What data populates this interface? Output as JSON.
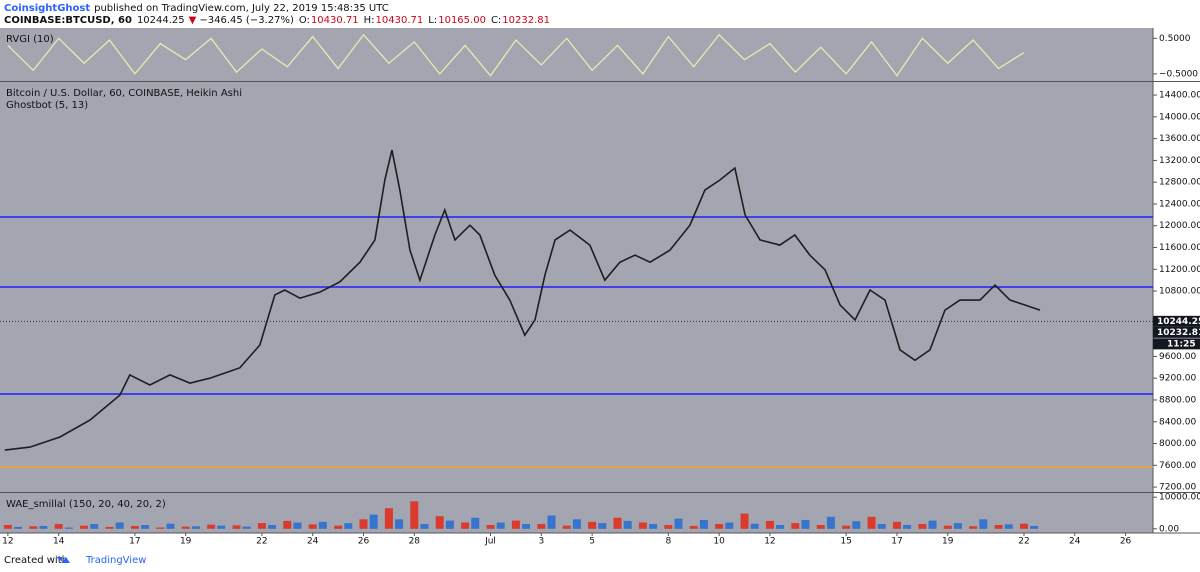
{
  "header": {
    "author": "CoinsightGhost",
    "published": "published on TradingView.com, July 22, 2019 15:48:35 UTC",
    "symbol": "COINBASE:BTCUSD, 60",
    "last": "10244.25",
    "arrow": "▼",
    "change": "−346.45 (−3.27%)",
    "ohlc": [
      {
        "k": "O:",
        "v": "10430.71"
      },
      {
        "k": "H:",
        "v": "10430.71"
      },
      {
        "k": "L:",
        "v": "10165.00"
      },
      {
        "k": "C:",
        "v": "10232.81"
      }
    ]
  },
  "chart_data": [
    {
      "type": "line",
      "title": "RVGI (10)",
      "ylim": [
        -0.7,
        0.79
      ],
      "yticks": [
        {
          "value": 0.5,
          "label": "0.5000"
        },
        {
          "value": -0.5,
          "label": "−0.5000"
        }
      ],
      "x": [
        0,
        1,
        2,
        3,
        4,
        5,
        6,
        7,
        8,
        9,
        10,
        11,
        12,
        13,
        14,
        15,
        16,
        17,
        18,
        19,
        20,
        21,
        22,
        23,
        24,
        25,
        26,
        27,
        28,
        29,
        30,
        31,
        32,
        33,
        34,
        35,
        36,
        37,
        38,
        39,
        40
      ],
      "series": [
        {
          "name": "RVGI",
          "color": "#e4ecae",
          "values": [
            0.3,
            -0.4,
            0.5,
            -0.2,
            0.45,
            -0.5,
            0.35,
            -0.1,
            0.5,
            -0.45,
            0.2,
            -0.3,
            0.55,
            -0.35,
            0.6,
            -0.2,
            0.4,
            -0.5,
            0.3,
            -0.55,
            0.45,
            -0.25,
            0.5,
            -0.4,
            0.3,
            -0.5,
            0.55,
            -0.3,
            0.6,
            -0.1,
            0.35,
            -0.45,
            0.25,
            -0.5,
            0.4,
            -0.55,
            0.5,
            -0.2,
            0.45,
            -0.35,
            0.1
          ]
        }
      ]
    },
    {
      "type": "line",
      "title": "Bitcoin / U.S. Dollar, 60, COINBASE, Heikin Ashi",
      "subtitle": "Ghostbot (5, 13)",
      "xlim": [
        -0.31,
        45.08
      ],
      "ylim": [
        7110,
        14640
      ],
      "xticks": [
        {
          "value": 0,
          "label": "12"
        },
        {
          "value": 2,
          "label": "14"
        },
        {
          "value": 5,
          "label": "17"
        },
        {
          "value": 7,
          "label": "19"
        },
        {
          "value": 10,
          "label": "22"
        },
        {
          "value": 12,
          "label": "24"
        },
        {
          "value": 14,
          "label": "26"
        },
        {
          "value": 16,
          "label": "28"
        },
        {
          "value": 19,
          "label": "Jul"
        },
        {
          "value": 21,
          "label": "3"
        },
        {
          "value": 23,
          "label": "5"
        },
        {
          "value": 26,
          "label": "8"
        },
        {
          "value": 28,
          "label": "10"
        },
        {
          "value": 30,
          "label": "12"
        },
        {
          "value": 33,
          "label": "15"
        },
        {
          "value": 35,
          "label": "17"
        },
        {
          "value": 37,
          "label": "19"
        },
        {
          "value": 40,
          "label": "22"
        },
        {
          "value": 42,
          "label": "24"
        },
        {
          "value": 44,
          "label": "26"
        }
      ],
      "yticks": [
        {
          "value": 7200,
          "label": "7200.00"
        },
        {
          "value": 7600,
          "label": "7600.00"
        },
        {
          "value": 8000,
          "label": "8000.00"
        },
        {
          "value": 8400,
          "label": "8400.00"
        },
        {
          "value": 8800,
          "label": "8800.00"
        },
        {
          "value": 9200,
          "label": "9200.00"
        },
        {
          "value": 9600,
          "label": "9600.00"
        },
        {
          "value": 10800,
          "label": "10800.00"
        },
        {
          "value": 11200,
          "label": "11200.00"
        },
        {
          "value": 11600,
          "label": "11600.00"
        },
        {
          "value": 12000,
          "label": "12000.00"
        },
        {
          "value": 12400,
          "label": "12400.00"
        },
        {
          "value": 12800,
          "label": "12800.00"
        },
        {
          "value": 13200,
          "label": "13200.00"
        },
        {
          "value": 13600,
          "label": "13600.00"
        },
        {
          "value": 14000,
          "label": "14000.00"
        },
        {
          "value": 14400,
          "label": "14400.00"
        }
      ],
      "x": [
        -0.12,
        0.87,
        2.05,
        3.23,
        4.41,
        4.8,
        5.59,
        6.38,
        7.17,
        7.95,
        9.13,
        9.92,
        10.51,
        10.9,
        11.5,
        12.28,
        13.07,
        13.86,
        14.45,
        14.84,
        15.12,
        15.43,
        15.83,
        16.22,
        16.81,
        17.2,
        17.6,
        18.19,
        18.58,
        19.17,
        19.76,
        20.35,
        20.75,
        21.14,
        21.54,
        22.13,
        22.91,
        23.5,
        24.09,
        24.69,
        25.28,
        26.06,
        26.85,
        27.44,
        28.03,
        28.62,
        29.02,
        29.61,
        30.39,
        30.98,
        31.57,
        32.17,
        32.76,
        33.35,
        33.94,
        34.53,
        35.12,
        35.71,
        36.3,
        36.89,
        37.48,
        38.27,
        38.86,
        39.45,
        40.04,
        40.63
      ],
      "series": [
        {
          "name": "BTCUSD",
          "color": "#1e1e1e",
          "values": [
            7880,
            7935,
            8120,
            8430,
            8890,
            9260,
            9075,
            9260,
            9110,
            9200,
            9390,
            9810,
            10730,
            10820,
            10670,
            10780,
            10970,
            11330,
            11740,
            12840,
            13390,
            12655,
            11550,
            11000,
            11830,
            12290,
            11740,
            12010,
            11830,
            11090,
            10635,
            9990,
            10270,
            11090,
            11740,
            11920,
            11645,
            11000,
            11330,
            11460,
            11330,
            11550,
            12010,
            12655,
            12840,
            13060,
            12200,
            11740,
            11645,
            11830,
            11460,
            11190,
            10545,
            10270,
            10820,
            10635,
            9720,
            9530,
            9720,
            10450,
            10635,
            10635,
            10910,
            10635,
            10545,
            10450
          ]
        }
      ],
      "hlines": [
        {
          "value": 12160,
          "color": "#1f1fff"
        },
        {
          "value": 10875,
          "color": "#1f1fff"
        },
        {
          "value": 8910,
          "color": "#1f1fff"
        },
        {
          "value": 7570,
          "color": "#f5a623"
        }
      ],
      "price_labels": [
        {
          "value": 10244.25,
          "label": "10244.25"
        },
        {
          "value": 10232.81,
          "label": "10232.81"
        }
      ],
      "countdown": "11:25"
    },
    {
      "type": "bar",
      "title": "WAE_smillal (150, 20, 40, 20, 2)",
      "ylim": [
        -1330,
        11330
      ],
      "yticks": [
        {
          "value": 10000,
          "label": "10000.00"
        },
        {
          "value": 0,
          "label": "0.00"
        }
      ],
      "x": [
        0,
        1,
        2,
        3,
        4,
        5,
        6,
        7,
        8,
        9,
        10,
        11,
        12,
        13,
        14,
        15,
        16,
        17,
        18,
        19,
        20,
        21,
        22,
        23,
        24,
        25,
        26,
        27,
        28,
        29,
        30,
        31,
        32,
        33,
        34,
        35,
        36,
        37,
        38,
        39,
        40
      ],
      "series": [
        {
          "name": "Down",
          "color": "#e0301e",
          "values": [
            1200,
            800,
            1500,
            1000,
            600,
            900,
            400,
            700,
            1300,
            1100,
            1800,
            2500,
            1400,
            1000,
            3000,
            6500,
            8700,
            4000,
            2000,
            1200,
            2600,
            1500,
            1000,
            2200,
            3500,
            2000,
            1200,
            900,
            1500,
            4800,
            2500,
            1800,
            1200,
            1000,
            3800,
            2200,
            1500,
            1000,
            800,
            1200,
            1600
          ]
        },
        {
          "name": "Up",
          "color": "#2a6fd0",
          "values": [
            600,
            900,
            400,
            1500,
            2000,
            1200,
            1600,
            800,
            1000,
            700,
            1200,
            2000,
            2200,
            1800,
            4500,
            3000,
            1500,
            2600,
            3500,
            2000,
            1500,
            4200,
            3000,
            1800,
            2500,
            1500,
            3200,
            2800,
            2000,
            1600,
            1200,
            2800,
            3800,
            2400,
            1500,
            1200,
            2600,
            1800,
            3000,
            1400,
            900
          ]
        }
      ]
    }
  ],
  "footer": {
    "text": "Created with",
    "brand": "TradingView"
  }
}
